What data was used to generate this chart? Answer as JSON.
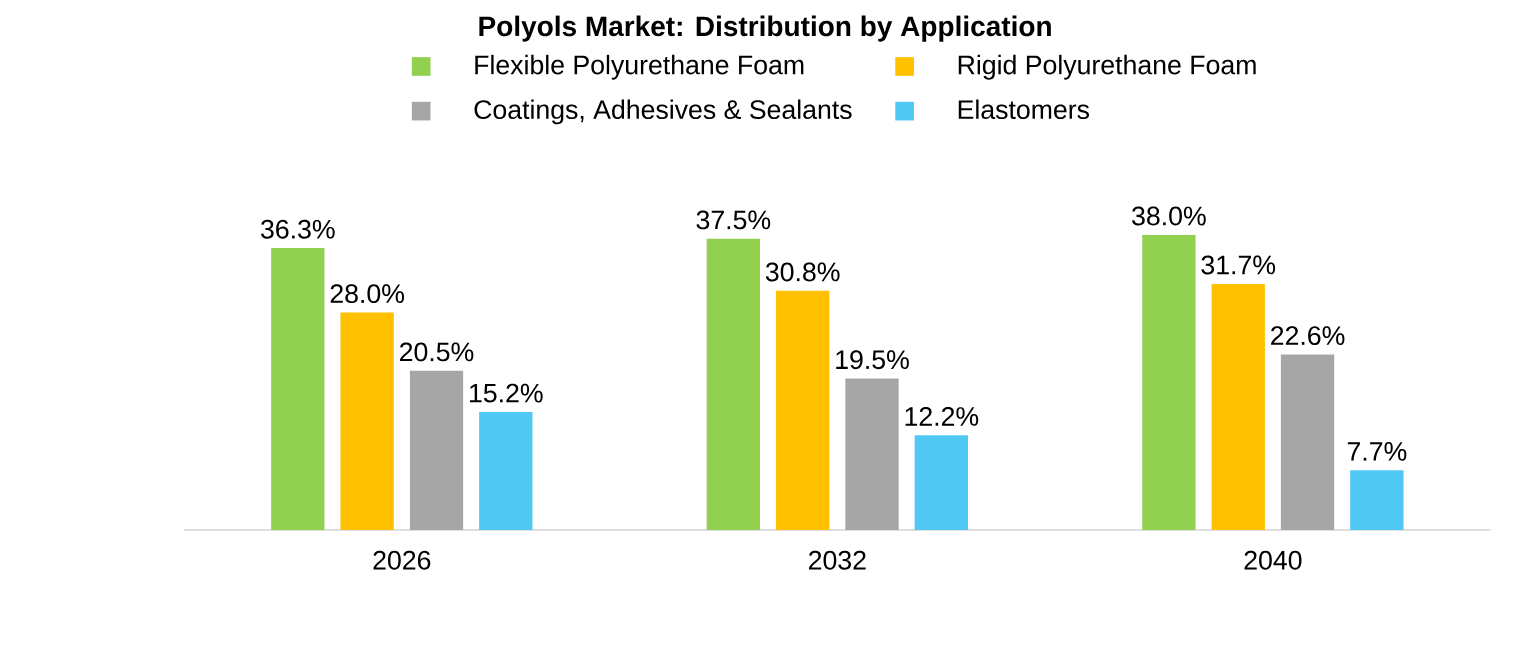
{
  "chart_data": {
    "type": "bar",
    "title": "Polyols Market: Distribution by Application",
    "categories": [
      "2026",
      "2032",
      "2040"
    ],
    "series": [
      {
        "name": "Flexible Polyurethane Foam",
        "color": "#92d050",
        "values": [
          36.3,
          37.5,
          38.0
        ],
        "value_labels": [
          "36.3%",
          "37.5%",
          "38.0%"
        ]
      },
      {
        "name": "Rigid Polyurethane Foam",
        "color": "#ffc000",
        "values": [
          28.0,
          30.8,
          31.7
        ],
        "value_labels": [
          "28.0%",
          "30.8%",
          "31.7%"
        ]
      },
      {
        "name": "Coatings, Adhesives & Sealants",
        "color": "#a6a6a6",
        "values": [
          20.5,
          19.5,
          22.6
        ],
        "value_labels": [
          "20.5%",
          "19.5%",
          "22.6%"
        ]
      },
      {
        "name": "Elastomers",
        "color": "#4fc8f4",
        "values": [
          15.2,
          12.2,
          7.7
        ],
        "value_labels": [
          "15.2%",
          "12.2%",
          "7.7%"
        ]
      }
    ],
    "legend": "top"
  }
}
